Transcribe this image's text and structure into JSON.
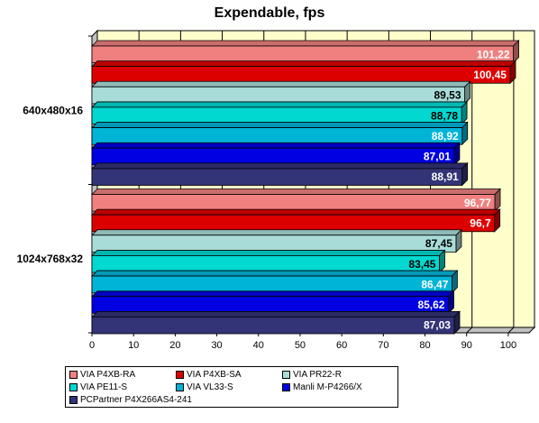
{
  "chart_data": {
    "type": "bar",
    "orientation": "horizontal",
    "title": "Expendable, fps",
    "categories": [
      "640x480x16",
      "1024x768x32"
    ],
    "series": [
      {
        "name": "VIA P4XB-RA",
        "color": "#f08080",
        "values": [
          101.22,
          96.77
        ],
        "labels": [
          "101,22",
          "96,77"
        ]
      },
      {
        "name": "VIA P4XB-SA",
        "color": "#dd0000",
        "values": [
          100.45,
          96.7
        ],
        "labels": [
          "100,45",
          "96,7"
        ]
      },
      {
        "name": "VIA PR22-R",
        "color": "#a8dcd8",
        "values": [
          89.53,
          87.45
        ],
        "labels": [
          "89,53",
          "87,45"
        ]
      },
      {
        "name": "VIA PE11-S",
        "color": "#00d8d0",
        "values": [
          88.78,
          83.45
        ],
        "labels": [
          "88,78",
          "83,45"
        ]
      },
      {
        "name": "VIA VL33-S",
        "color": "#00b4d8",
        "values": [
          88.92,
          86.47
        ],
        "labels": [
          "88,92",
          "86,47"
        ]
      },
      {
        "name": "Manli M-P4266/X",
        "color": "#0000e0",
        "values": [
          87.01,
          85.62
        ],
        "labels": [
          "87,01",
          "85,62"
        ]
      },
      {
        "name": "PCPartner P4X266AS4-241",
        "color": "#333377",
        "values": [
          88.91,
          87.03
        ],
        "labels": [
          "88,91",
          "87,03"
        ]
      }
    ],
    "xlim": [
      0,
      105
    ],
    "xticks": [
      "0",
      "10",
      "20",
      "30",
      "40",
      "50",
      "60",
      "70",
      "80",
      "90",
      "100"
    ],
    "plot_background": "#ffffcc",
    "grid": true,
    "legend_position": "bottom"
  }
}
